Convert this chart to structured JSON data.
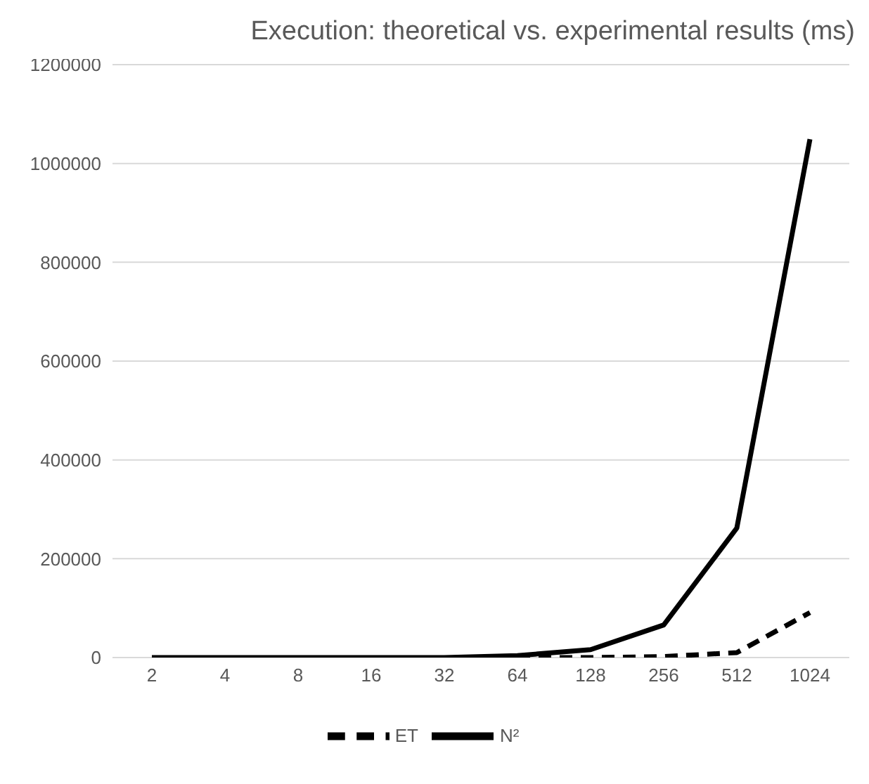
{
  "chart_data": {
    "type": "line",
    "title": "Execution: theoretical vs. experimental results (ms)",
    "categories": [
      "2",
      "4",
      "8",
      "16",
      "32",
      "64",
      "128",
      "256",
      "512",
      "1024"
    ],
    "series": [
      {
        "name": "N²",
        "color": "#000000",
        "line_style": "solid",
        "values": [
          0,
          0,
          0,
          0,
          0,
          4000,
          16000,
          66000,
          262000,
          1049000
        ]
      },
      {
        "name": "ET",
        "color": "#000000",
        "line_style": "dashed",
        "values": [
          null,
          null,
          null,
          null,
          null,
          0,
          0,
          2000,
          10000,
          91000
        ]
      }
    ],
    "ylim": [
      0,
      1200000
    ],
    "yticks": [
      0,
      200000,
      400000,
      600000,
      800000,
      1000000,
      1200000
    ],
    "grid": "y",
    "legend": "bottom",
    "marker": "none"
  }
}
